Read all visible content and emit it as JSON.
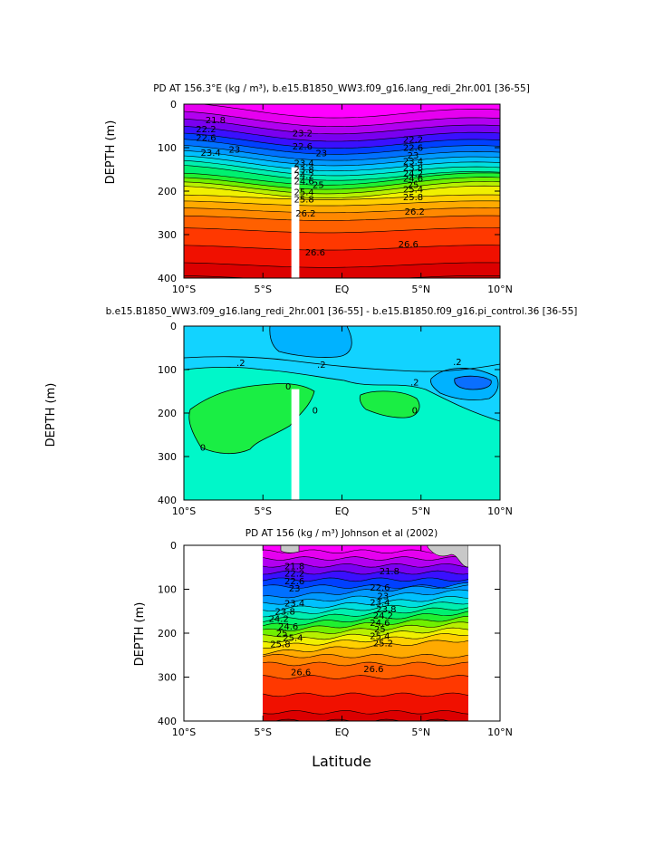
{
  "chart_data": [
    {
      "type": "contour",
      "id": "panel1",
      "title": "PD AT 156.3°E (kg / m³), b.e15.B1850_WW3.f09_g16.lang_redi_2hr.001 [36-55]",
      "ylabel": "DEPTH  (m)",
      "xlabel": "",
      "xlim": [
        -10,
        10
      ],
      "ylim": [
        400,
        0
      ],
      "x_ticks": [
        -10,
        -5,
        0,
        5,
        10
      ],
      "x_tick_labels": [
        "10°S",
        "5°S",
        "EQ",
        "5°N",
        "10°N"
      ],
      "y_ticks": [
        0,
        100,
        200,
        300,
        400
      ],
      "y_tick_labels": [
        "0",
        "100",
        "200",
        "300",
        "400"
      ],
      "masked_column": {
        "lat_from": -3.2,
        "lat_to": -2.7,
        "depth_from": 145,
        "depth_to": 400
      },
      "contour_labels": [
        {
          "text": "21.8",
          "lat": -8.0,
          "depth": 38
        },
        {
          "text": "22.2",
          "lat": -8.6,
          "depth": 58
        },
        {
          "text": "22.6",
          "lat": -8.6,
          "depth": 78
        },
        {
          "text": "23",
          "lat": -6.8,
          "depth": 105
        },
        {
          "text": "23.4",
          "lat": -8.3,
          "depth": 112
        },
        {
          "text": "23.2",
          "lat": -2.5,
          "depth": 68
        },
        {
          "text": "22.6",
          "lat": -2.5,
          "depth": 98
        },
        {
          "text": "23",
          "lat": -1.3,
          "depth": 114
        },
        {
          "text": "23.4",
          "lat": -2.4,
          "depth": 136
        },
        {
          "text": "23.8",
          "lat": -2.4,
          "depth": 151
        },
        {
          "text": "24.2",
          "lat": -2.4,
          "depth": 165
        },
        {
          "text": "24.6",
          "lat": -2.4,
          "depth": 178
        },
        {
          "text": "25",
          "lat": -1.5,
          "depth": 186
        },
        {
          "text": "25.4",
          "lat": -2.4,
          "depth": 203
        },
        {
          "text": "25.8",
          "lat": -2.4,
          "depth": 220
        },
        {
          "text": "26.2",
          "lat": -2.3,
          "depth": 252
        },
        {
          "text": "26.6",
          "lat": -1.7,
          "depth": 342
        },
        {
          "text": "22.2",
          "lat": 4.5,
          "depth": 82
        },
        {
          "text": "22.6",
          "lat": 4.5,
          "depth": 101
        },
        {
          "text": "23",
          "lat": 4.5,
          "depth": 119
        },
        {
          "text": "23.4",
          "lat": 4.5,
          "depth": 132
        },
        {
          "text": "23.8",
          "lat": 4.5,
          "depth": 147
        },
        {
          "text": "24.2",
          "lat": 4.5,
          "depth": 160
        },
        {
          "text": "24.6",
          "lat": 4.5,
          "depth": 172
        },
        {
          "text": "25",
          "lat": 4.5,
          "depth": 186
        },
        {
          "text": "25.4",
          "lat": 4.5,
          "depth": 197
        },
        {
          "text": "25.8",
          "lat": 4.5,
          "depth": 215
        },
        {
          "text": "26.2",
          "lat": 4.6,
          "depth": 248
        },
        {
          "text": "26.6",
          "lat": 4.2,
          "depth": 323
        }
      ]
    },
    {
      "type": "contour",
      "id": "panel2",
      "title": "b.e15.B1850_WW3.f09_g16.lang_redi_2hr.001 [36-55] - b.e15.B1850.f09_g16.pi_control.36 [36-55]",
      "ylabel": "DEPTH  (m)",
      "xlabel": "",
      "xlim": [
        -10,
        10
      ],
      "ylim": [
        400,
        0
      ],
      "x_ticks": [
        -10,
        -5,
        0,
        5,
        10
      ],
      "x_tick_labels": [
        "10°S",
        "5°S",
        "EQ",
        "5°N",
        "10°N"
      ],
      "y_ticks": [
        0,
        100,
        200,
        300,
        400
      ],
      "y_tick_labels": [
        "0",
        "100",
        "200",
        "300",
        "400"
      ],
      "masked_column": {
        "lat_from": -3.2,
        "lat_to": -2.7,
        "depth_from": 145,
        "depth_to": 400
      },
      "contour_labels": [
        {
          "text": ".2",
          "lat": -6.4,
          "depth": 85
        },
        {
          "text": ".2",
          "lat": -1.3,
          "depth": 90
        },
        {
          "text": ".2",
          "lat": 4.6,
          "depth": 130
        },
        {
          "text": ".2",
          "lat": 7.3,
          "depth": 83
        },
        {
          "text": "0",
          "lat": -3.4,
          "depth": 140
        },
        {
          "text": "0",
          "lat": -1.7,
          "depth": 195
        },
        {
          "text": "0",
          "lat": 4.6,
          "depth": 195
        },
        {
          "text": "0",
          "lat": -8.8,
          "depth": 280
        }
      ]
    },
    {
      "type": "contour",
      "id": "panel3",
      "title": "PD AT 156 (kg / m³) Johnson et al (2002)",
      "ylabel": "DEPTH  (m)",
      "xlabel": "Latitude",
      "xlim": [
        -10,
        10
      ],
      "ylim": [
        400,
        0
      ],
      "x_ticks": [
        -10,
        -5,
        0,
        5,
        10
      ],
      "x_tick_labels": [
        "10°S",
        "5°S",
        "EQ",
        "5°N",
        "10°N"
      ],
      "y_ticks": [
        0,
        100,
        200,
        300,
        400
      ],
      "y_tick_labels": [
        "0",
        "100",
        "200",
        "300",
        "400"
      ],
      "data_extent": {
        "lat_from": -5,
        "lat_to": 8
      },
      "contour_labels": [
        {
          "text": "21.8",
          "lat": -3.0,
          "depth": 48
        },
        {
          "text": "22.2",
          "lat": -3.0,
          "depth": 65
        },
        {
          "text": "22.6",
          "lat": -3.0,
          "depth": 82
        },
        {
          "text": "23",
          "lat": -3.0,
          "depth": 99
        },
        {
          "text": "23.4",
          "lat": -3.0,
          "depth": 133
        },
        {
          "text": "23.8",
          "lat": -3.6,
          "depth": 152
        },
        {
          "text": "24.2",
          "lat": -4.0,
          "depth": 168
        },
        {
          "text": "24.6",
          "lat": -3.4,
          "depth": 186
        },
        {
          "text": "25",
          "lat": -3.8,
          "depth": 201
        },
        {
          "text": "25.4",
          "lat": -3.1,
          "depth": 211
        },
        {
          "text": "25.8",
          "lat": -3.9,
          "depth": 226
        },
        {
          "text": "26.6",
          "lat": -2.6,
          "depth": 290
        },
        {
          "text": "21.8",
          "lat": 3.0,
          "depth": 60
        },
        {
          "text": "22.6",
          "lat": 2.4,
          "depth": 97
        },
        {
          "text": "23",
          "lat": 2.6,
          "depth": 117
        },
        {
          "text": "23.4",
          "lat": 2.4,
          "depth": 131
        },
        {
          "text": "23.8",
          "lat": 2.8,
          "depth": 146
        },
        {
          "text": "24.2",
          "lat": 2.6,
          "depth": 161
        },
        {
          "text": "24.6",
          "lat": 2.4,
          "depth": 177
        },
        {
          "text": "25",
          "lat": 2.4,
          "depth": 192
        },
        {
          "text": "25.4",
          "lat": 2.4,
          "depth": 207
        },
        {
          "text": "25.2",
          "lat": 2.6,
          "depth": 224
        },
        {
          "text": "26.6",
          "lat": 2.0,
          "depth": 282
        }
      ]
    }
  ]
}
